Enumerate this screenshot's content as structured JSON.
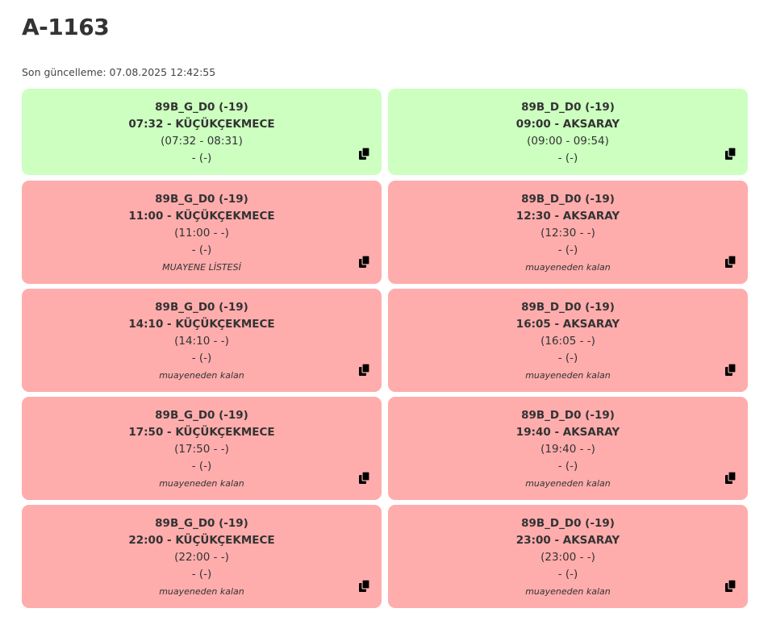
{
  "header": {
    "title": "A-1163",
    "updated": "Son güncelleme: 07.08.2025 12:42:55"
  },
  "cards": [
    {
      "status": "green",
      "route": "89B_G_D0 (-19)",
      "departure": "07:32 - KÜÇÜKÇEKMECE",
      "range": "(07:32 - 08:31)",
      "extra": "- (-)",
      "note": ""
    },
    {
      "status": "green",
      "route": "89B_D_D0 (-19)",
      "departure": "09:00 - AKSARAY",
      "range": "(09:00 - 09:54)",
      "extra": "- (-)",
      "note": ""
    },
    {
      "status": "red",
      "route": "89B_G_D0 (-19)",
      "departure": "11:00 - KÜÇÜKÇEKMECE",
      "range": "(11:00 - -)",
      "extra": "- (-)",
      "note": "MUAYENE LİSTESİ"
    },
    {
      "status": "red",
      "route": "89B_D_D0 (-19)",
      "departure": "12:30 - AKSARAY",
      "range": "(12:30 - -)",
      "extra": "- (-)",
      "note": "muayeneden kalan"
    },
    {
      "status": "red",
      "route": "89B_G_D0 (-19)",
      "departure": "14:10 - KÜÇÜKÇEKMECE",
      "range": "(14:10 - -)",
      "extra": "- (-)",
      "note": "muayeneden kalan"
    },
    {
      "status": "red",
      "route": "89B_D_D0 (-19)",
      "departure": "16:05 - AKSARAY",
      "range": "(16:05 - -)",
      "extra": "- (-)",
      "note": "muayeneden kalan"
    },
    {
      "status": "red",
      "route": "89B_G_D0 (-19)",
      "departure": "17:50 - KÜÇÜKÇEKMECE",
      "range": "(17:50 - -)",
      "extra": "- (-)",
      "note": "muayeneden kalan"
    },
    {
      "status": "red",
      "route": "89B_D_D0 (-19)",
      "departure": "19:40 - AKSARAY",
      "range": "(19:40 - -)",
      "extra": "- (-)",
      "note": "muayeneden kalan"
    },
    {
      "status": "red",
      "route": "89B_G_D0 (-19)",
      "departure": "22:00 - KÜÇÜKÇEKMECE",
      "range": "(22:00 - -)",
      "extra": "- (-)",
      "note": "muayeneden kalan"
    },
    {
      "status": "red",
      "route": "89B_D_D0 (-19)",
      "departure": "23:00 - AKSARAY",
      "range": "(23:00 - -)",
      "extra": "- (-)",
      "note": "muayeneden kalan"
    }
  ],
  "icons": {
    "copy": "copy-icon"
  },
  "colors": {
    "green_card": "#ccffc0",
    "red_card": "#ffacac",
    "text": "#333333"
  }
}
